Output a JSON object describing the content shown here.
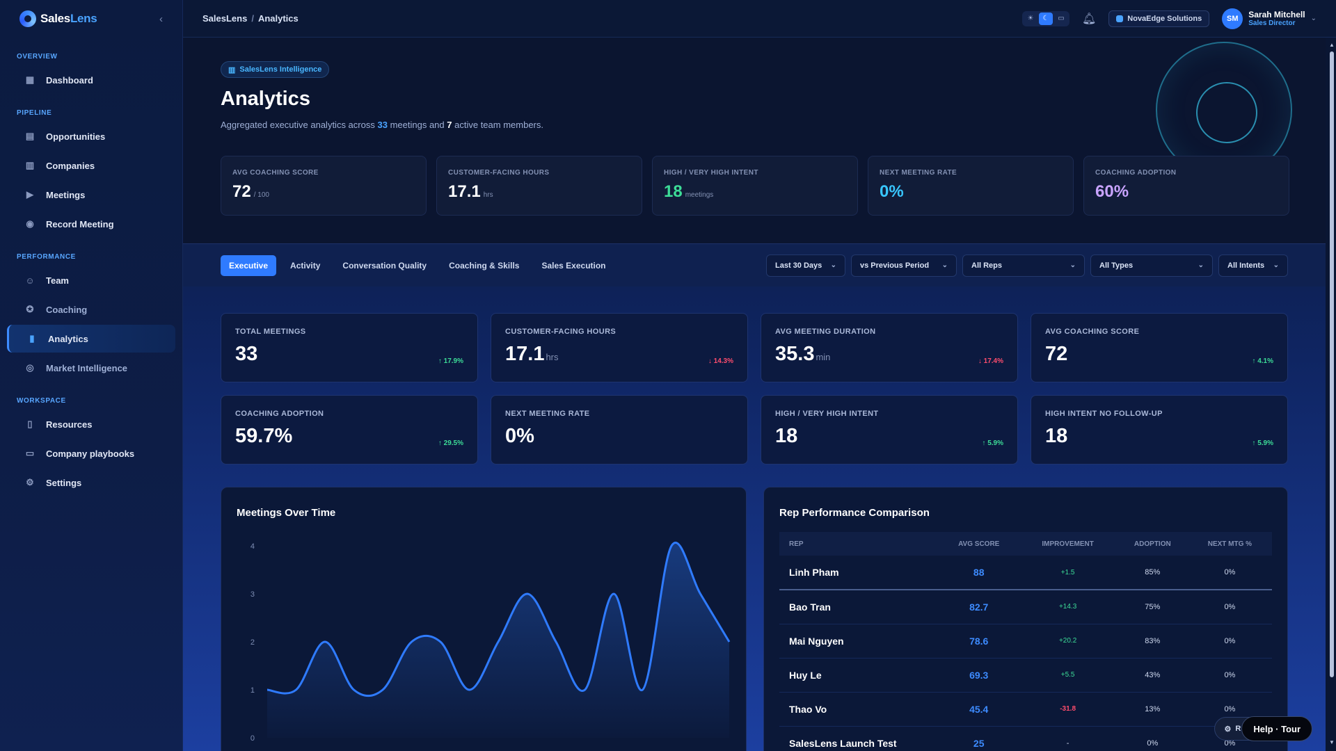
{
  "sidebar": {
    "logo": {
      "text_main": "Sales",
      "text_accent": "Lens",
      "collapse_icon": "chevron-left-icon"
    },
    "sections": [
      {
        "title": "OVERVIEW",
        "items": [
          {
            "label": "Dashboard",
            "icon": "dashboard-icon"
          }
        ]
      },
      {
        "title": "PIPELINE",
        "items": [
          {
            "label": "Opportunities",
            "icon": "briefcase-icon"
          },
          {
            "label": "Companies",
            "icon": "building-icon"
          },
          {
            "label": "Meetings",
            "icon": "video-icon"
          },
          {
            "label": "Record Meeting",
            "icon": "record-icon"
          }
        ]
      },
      {
        "title": "PERFORMANCE",
        "items": [
          {
            "label": "Team",
            "icon": "users-icon"
          },
          {
            "label": "Coaching",
            "icon": "coaching-icon"
          },
          {
            "label": "Analytics",
            "icon": "bar-chart-icon",
            "active": true
          },
          {
            "label": "Market Intelligence",
            "icon": "compass-icon"
          }
        ]
      },
      {
        "title": "WORKSPACE",
        "items": [
          {
            "label": "Resources",
            "icon": "book-icon"
          },
          {
            "label": "Company playbooks",
            "icon": "book-open-icon"
          },
          {
            "label": "Settings",
            "icon": "gear-icon"
          }
        ]
      }
    ]
  },
  "topbar": {
    "breadcrumb": [
      "SalesLens",
      "Analytics"
    ],
    "org": "NovaEdge Solutions",
    "user": {
      "initials": "SM",
      "name": "Sarah Mitchell",
      "role": "Sales Director"
    }
  },
  "hero": {
    "badge": "SalesLens Intelligence",
    "title": "Analytics",
    "subtitle": {
      "pre": "Aggregated executive analytics across",
      "meetings": "33",
      "mid": "meetings and",
      "members": "7",
      "post": "active team members."
    },
    "kpis": [
      {
        "label": "AVG COACHING SCORE",
        "value": "72",
        "unit": "/ 100",
        "style": ""
      },
      {
        "label": "CUSTOMER-FACING HOURS",
        "value": "17.1",
        "unit": "hrs",
        "style": ""
      },
      {
        "label": "HIGH / VERY HIGH INTENT",
        "value": "18",
        "unit": "meetings",
        "style": "green"
      },
      {
        "label": "NEXT MEETING RATE",
        "value": "0%",
        "unit": "",
        "style": "cyan"
      },
      {
        "label": "COACHING ADOPTION",
        "value": "60%",
        "unit": "",
        "style": "violet"
      }
    ]
  },
  "tabs": [
    "Executive",
    "Activity",
    "Conversation Quality",
    "Coaching & Skills",
    "Sales Execution"
  ],
  "filters": [
    "Last 30 Days",
    "vs Previous Period",
    "All Reps",
    "All Types",
    "All Intents"
  ],
  "kpis": [
    {
      "label": "TOTAL MEETINGS",
      "value": "33",
      "unit": "",
      "trend": "↑ 17.9%",
      "dir": "up"
    },
    {
      "label": "CUSTOMER-FACING HOURS",
      "value": "17.1",
      "unit": "hrs",
      "trend": "↓ 14.3%",
      "dir": "down"
    },
    {
      "label": "AVG MEETING DURATION",
      "value": "35.3",
      "unit": "min",
      "trend": "↓ 17.4%",
      "dir": "down"
    },
    {
      "label": "AVG COACHING SCORE",
      "value": "72",
      "unit": "",
      "trend": "↑ 4.1%",
      "dir": "up"
    },
    {
      "label": "COACHING ADOPTION",
      "value": "59.7%",
      "unit": "",
      "trend": "↑ 29.5%",
      "dir": "up"
    },
    {
      "label": "NEXT MEETING RATE",
      "value": "0%",
      "unit": "",
      "trend": "",
      "dir": ""
    },
    {
      "label": "HIGH / VERY HIGH INTENT",
      "value": "18",
      "unit": "",
      "trend": "↑ 5.9%",
      "dir": "up"
    },
    {
      "label": "HIGH INTENT NO FOLLOW-UP",
      "value": "18",
      "unit": "",
      "trend": "↑ 5.9%",
      "dir": "up"
    }
  ],
  "chart_panel": {
    "title": "Meetings Over Time"
  },
  "chart_data": {
    "type": "area",
    "title": "Meetings Over Time",
    "xlabel": "",
    "ylabel": "",
    "ylim": [
      0,
      4
    ],
    "yticks": [
      "0",
      "1",
      "2",
      "3",
      "4"
    ],
    "grid": false,
    "values": [
      1,
      1,
      2,
      1,
      1,
      2,
      2,
      1,
      2,
      3,
      2,
      1,
      3,
      1,
      4,
      3,
      2
    ],
    "line_color": "#2f7bff"
  },
  "table_panel": {
    "title": "Rep Performance Comparison",
    "columns": [
      "REP",
      "AVG SCORE",
      "IMPROVEMENT",
      "ADOPTION",
      "NEXT MTG %"
    ],
    "rows": [
      {
        "rep": "Linh Pham",
        "score": "88",
        "improvement": "+1.5",
        "dir": "up",
        "adoption": "85%",
        "next": "0%"
      },
      {
        "rep": "Bao Tran",
        "score": "82.7",
        "improvement": "+14.3",
        "dir": "up",
        "adoption": "75%",
        "next": "0%"
      },
      {
        "rep": "Mai Nguyen",
        "score": "78.6",
        "improvement": "+20.2",
        "dir": "up",
        "adoption": "83%",
        "next": "0%"
      },
      {
        "rep": "Huy Le",
        "score": "69.3",
        "improvement": "+5.5",
        "dir": "up",
        "adoption": "43%",
        "next": "0%"
      },
      {
        "rep": "Thao Vo",
        "score": "45.4",
        "improvement": "-31.8",
        "dir": "down",
        "adoption": "13%",
        "next": "0%"
      },
      {
        "rep": "SalesLens Launch Test",
        "score": "25",
        "improvement": "-",
        "dir": "",
        "adoption": "0%",
        "next": "0%"
      }
    ]
  },
  "help": {
    "ghost_label": "R",
    "button_label": "Help · Tour"
  },
  "colors": {
    "accent": "#2f7bff",
    "positive": "#3ddc97",
    "negative": "#ff4d6d",
    "bg": "#0a1633"
  }
}
